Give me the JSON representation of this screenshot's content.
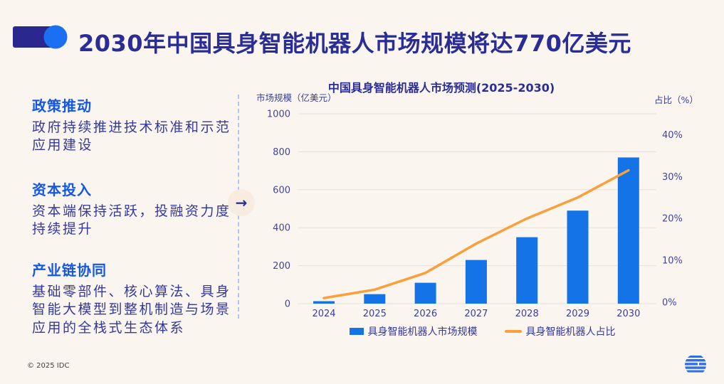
{
  "header": {
    "title": "2030年中国具身智能机器人市场规模将达770亿美元"
  },
  "sidebar": {
    "sections": [
      {
        "heading": "政策推动",
        "body": "政府持续推进技术标准和示范应用建设"
      },
      {
        "heading": "资本投入",
        "body": "资本端保持活跃，投融资力度持续提升"
      },
      {
        "heading": "产业链协同",
        "body": "基础零部件、核心算法、具身智能大模型到整机制造与场景应用的全栈式生态体系"
      }
    ]
  },
  "arrow_icon": "→",
  "chart_data": {
    "type": "bar",
    "title": "中国具身智能机器人市场预测(2025-2030)",
    "categories": [
      "2024",
      "2025",
      "2026",
      "2027",
      "2028",
      "2029",
      "2030"
    ],
    "series": [
      {
        "name": "具身智能机器人市场规模",
        "type": "bar",
        "axis": "left",
        "color": "#1473E6",
        "values": [
          13,
          50,
          110,
          230,
          350,
          490,
          770
        ]
      },
      {
        "name": "具身智能机器人占比",
        "type": "line",
        "axis": "right",
        "color": "#F9A03C",
        "values": [
          1,
          3,
          7,
          14,
          20,
          25,
          31.5
        ]
      }
    ],
    "left_axis": {
      "label": "市场规模（亿美元）",
      "ticks": [
        0,
        200,
        400,
        600,
        800,
        1000
      ],
      "lim": [
        0,
        1000
      ]
    },
    "right_axis": {
      "label": "占比（%）",
      "tick_labels": [
        "0%",
        "10%",
        "20%",
        "30%",
        "40%"
      ],
      "tick_values": [
        0,
        10,
        20,
        30,
        40
      ],
      "lim": [
        0,
        45
      ]
    },
    "grid": true,
    "legend_position": "bottom"
  },
  "footer": {
    "copyright": "© 2025 IDC"
  },
  "colors": {
    "background": "#FAF6EF",
    "title_navy": "#2B2D96",
    "heading_blue": "#1456E8",
    "bar_blue": "#1473E6",
    "line_orange": "#F9A03C",
    "grid_gray": "#E6E2D9"
  }
}
